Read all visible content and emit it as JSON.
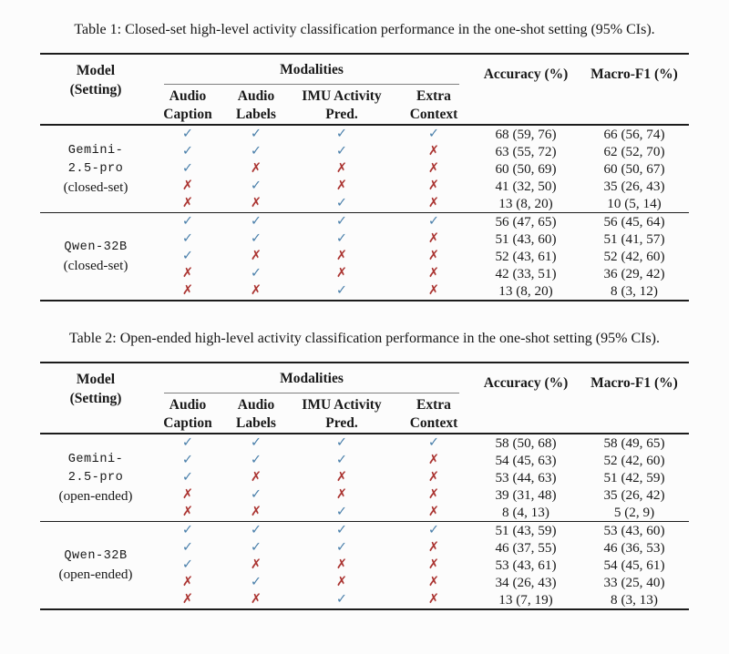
{
  "colors": {
    "check": "#4b80ab",
    "cross": "#ab3532",
    "rule": "#1c1c1c"
  },
  "icons": {
    "check": "check-icon ✓",
    "cross": "cross-icon ✗"
  },
  "tables": [
    {
      "caption": "Table 1: Closed-set high-level activity classification performance in the one-shot setting (95% CIs).",
      "header": {
        "model": "Model",
        "setting_label": "(Setting)",
        "modalities": "Modalities",
        "subcols": [
          {
            "l1": "Audio",
            "l2": "Caption"
          },
          {
            "l1": "Audio",
            "l2": "Labels"
          },
          {
            "l1": "IMU Activity",
            "l2": "Pred."
          },
          {
            "l1": "Extra",
            "l2": "Context"
          }
        ],
        "accuracy": "Accuracy (%)",
        "macro_f1": "Macro-F1 (%)"
      },
      "groups": [
        {
          "name_l1": "Gemini-",
          "name_l2": "2.5-pro",
          "setting": "(closed-set)",
          "rows": [
            {
              "marks": [
                "check",
                "check",
                "check",
                "check"
              ],
              "accuracy": "68 (59, 76)",
              "macro_f1": "66 (56, 74)"
            },
            {
              "marks": [
                "check",
                "check",
                "check",
                "cross"
              ],
              "accuracy": "63 (55, 72)",
              "macro_f1": "62 (52, 70)"
            },
            {
              "marks": [
                "check",
                "cross",
                "cross",
                "cross"
              ],
              "accuracy": "60 (50, 69)",
              "macro_f1": "60 (50, 67)"
            },
            {
              "marks": [
                "cross",
                "check",
                "cross",
                "cross"
              ],
              "accuracy": "41 (32, 50)",
              "macro_f1": "35 (26, 43)"
            },
            {
              "marks": [
                "cross",
                "cross",
                "check",
                "cross"
              ],
              "accuracy": "13 (8, 20)",
              "macro_f1": "10 (5, 14)"
            }
          ]
        },
        {
          "name_l1": "Qwen-32B",
          "setting": "(closed-set)",
          "rows": [
            {
              "marks": [
                "check",
                "check",
                "check",
                "check"
              ],
              "accuracy": "56 (47, 65)",
              "macro_f1": "56 (45, 64)"
            },
            {
              "marks": [
                "check",
                "check",
                "check",
                "cross"
              ],
              "accuracy": "51 (43, 60)",
              "macro_f1": "51 (41, 57)"
            },
            {
              "marks": [
                "check",
                "cross",
                "cross",
                "cross"
              ],
              "accuracy": "52 (43, 61)",
              "macro_f1": "52 (42, 60)"
            },
            {
              "marks": [
                "cross",
                "check",
                "cross",
                "cross"
              ],
              "accuracy": "42 (33, 51)",
              "macro_f1": "36 (29, 42)"
            },
            {
              "marks": [
                "cross",
                "cross",
                "check",
                "cross"
              ],
              "accuracy": "13 (8, 20)",
              "macro_f1": "8 (3, 12)"
            }
          ]
        }
      ]
    },
    {
      "caption": "Table 2: Open-ended high-level activity classification performance in the one-shot setting (95% CIs).",
      "header": {
        "model": "Model",
        "setting_label": "(Setting)",
        "modalities": "Modalities",
        "subcols": [
          {
            "l1": "Audio",
            "l2": "Caption"
          },
          {
            "l1": "Audio",
            "l2": "Labels"
          },
          {
            "l1": "IMU Activity",
            "l2": "Pred."
          },
          {
            "l1": "Extra",
            "l2": "Context"
          }
        ],
        "accuracy": "Accuracy (%)",
        "macro_f1": "Macro-F1 (%)"
      },
      "groups": [
        {
          "name_l1": "Gemini-",
          "name_l2": "2.5-pro",
          "setting": "(open-ended)",
          "rows": [
            {
              "marks": [
                "check",
                "check",
                "check",
                "check"
              ],
              "accuracy": "58 (50, 68)",
              "macro_f1": "58 (49, 65)"
            },
            {
              "marks": [
                "check",
                "check",
                "check",
                "cross"
              ],
              "accuracy": "54 (45, 63)",
              "macro_f1": "52 (42, 60)"
            },
            {
              "marks": [
                "check",
                "cross",
                "cross",
                "cross"
              ],
              "accuracy": "53 (44, 63)",
              "macro_f1": "51 (42, 59)"
            },
            {
              "marks": [
                "cross",
                "check",
                "cross",
                "cross"
              ],
              "accuracy": "39 (31, 48)",
              "macro_f1": "35 (26, 42)"
            },
            {
              "marks": [
                "cross",
                "cross",
                "check",
                "cross"
              ],
              "accuracy": "8 (4, 13)",
              "macro_f1": "5 (2, 9)"
            }
          ]
        },
        {
          "name_l1": "Qwen-32B",
          "setting": "(open-ended)",
          "rows": [
            {
              "marks": [
                "check",
                "check",
                "check",
                "check"
              ],
              "accuracy": "51 (43, 59)",
              "macro_f1": "53 (43, 60)"
            },
            {
              "marks": [
                "check",
                "check",
                "check",
                "cross"
              ],
              "accuracy": "46 (37, 55)",
              "macro_f1": "46 (36, 53)"
            },
            {
              "marks": [
                "check",
                "cross",
                "cross",
                "cross"
              ],
              "accuracy": "53 (43, 61)",
              "macro_f1": "54 (45, 61)"
            },
            {
              "marks": [
                "cross",
                "check",
                "cross",
                "cross"
              ],
              "accuracy": "34 (26, 43)",
              "macro_f1": "33 (25, 40)"
            },
            {
              "marks": [
                "cross",
                "cross",
                "check",
                "cross"
              ],
              "accuracy": "13 (7, 19)",
              "macro_f1": "8 (3, 13)"
            }
          ]
        }
      ]
    }
  ]
}
